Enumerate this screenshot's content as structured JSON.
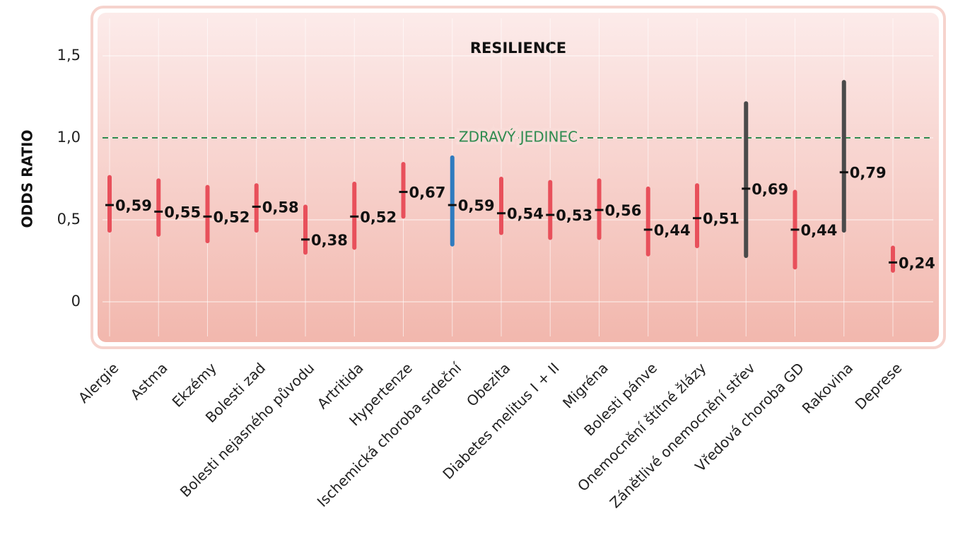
{
  "chart_data": {
    "type": "errorbar",
    "title": "RESILIENCE",
    "ylabel": "ODDS RATIO",
    "categories": [
      "Alergie",
      "Astma",
      "Ekzémy",
      "Bolesti zad",
      "Bolesti nejasného původu",
      "Artritida",
      "Hypertenze",
      "Ischemická choroba srdeční",
      "Obezita",
      "Diabetes melitus I + II",
      "Migréna",
      "Bolesti pánve",
      "Onemocnění štítné žlázy",
      "Zánětlivé onemocnění střev",
      "Vředová choroba GD",
      "Rakovina",
      "Deprese"
    ],
    "values": [
      0.59,
      0.55,
      0.52,
      0.58,
      0.38,
      0.52,
      0.67,
      0.59,
      0.54,
      0.53,
      0.56,
      0.44,
      0.51,
      0.69,
      0.44,
      0.79,
      0.24
    ],
    "value_labels": [
      "0,59",
      "0,55",
      "0,52",
      "0,58",
      "0,38",
      "0,52",
      "0,67",
      "0,59",
      "0,54",
      "0,53",
      "0,56",
      "0,44",
      "0,51",
      "0,69",
      "0,44",
      "0,79",
      "0,24"
    ],
    "lower": [
      0.435,
      0.41,
      0.37,
      0.435,
      0.3,
      0.33,
      0.52,
      0.35,
      0.42,
      0.39,
      0.39,
      0.29,
      0.34,
      0.28,
      0.21,
      0.435,
      0.19
    ],
    "upper": [
      0.76,
      0.74,
      0.7,
      0.71,
      0.58,
      0.72,
      0.84,
      0.88,
      0.75,
      0.73,
      0.74,
      0.69,
      0.71,
      1.21,
      0.67,
      1.34,
      0.33
    ],
    "colors": [
      "#e8505b",
      "#e8505b",
      "#e8505b",
      "#e8505b",
      "#e8505b",
      "#e8505b",
      "#e8505b",
      "#2f7bbf",
      "#e8505b",
      "#e8505b",
      "#e8505b",
      "#e8505b",
      "#e8505b",
      "#4a4a4a",
      "#e8505b",
      "#4a4a4a",
      "#e8505b"
    ],
    "ylim": [
      -0.25,
      1.75
    ],
    "yticks": [
      0,
      {
        "value": 0.5,
        "label": "0,5"
      },
      {
        "value": 1,
        "label": "1,0"
      },
      {
        "value": 1.5,
        "label": "1,5"
      }
    ],
    "reference_line": {
      "value": 1,
      "label": "ZDRAVÝ JEDINEC",
      "color": "#2e8b4f"
    },
    "grid": true
  }
}
